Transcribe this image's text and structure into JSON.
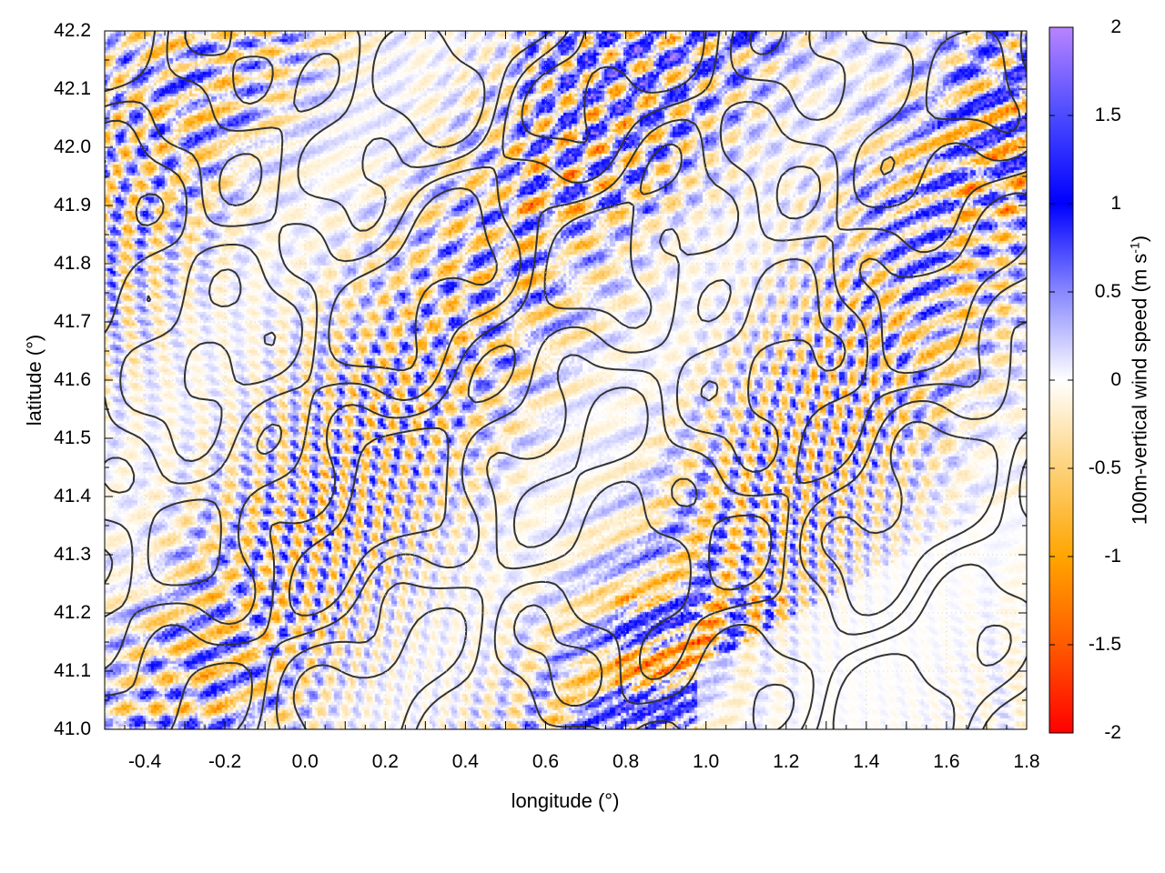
{
  "chart_data": {
    "type": "heatmap",
    "xlabel": "longitude (°)",
    "ylabel": "latitude (°)",
    "colorbar_label": "100m-vertical wind speed (m s",
    "colorbar_label_sup": "-1",
    "colorbar_label_end": ")",
    "xlim": [
      -0.5,
      1.8
    ],
    "ylim": [
      41.0,
      42.2
    ],
    "zlim": [
      -2,
      2
    ],
    "xticks": [
      "-0.4",
      "-0.2",
      "0.0",
      "0.2",
      "0.4",
      "0.6",
      "0.8",
      "1.0",
      "1.2",
      "1.4",
      "1.6",
      "1.8"
    ],
    "xtick_values": [
      -0.4,
      -0.2,
      0.0,
      0.2,
      0.4,
      0.6,
      0.8,
      1.0,
      1.2,
      1.4,
      1.6,
      1.8
    ],
    "yticks": [
      "41.0",
      "41.1",
      "41.2",
      "41.3",
      "41.4",
      "41.5",
      "41.6",
      "41.7",
      "41.8",
      "41.9",
      "42.0",
      "42.1",
      "42.2"
    ],
    "ytick_values": [
      41.0,
      41.1,
      41.2,
      41.3,
      41.4,
      41.5,
      41.6,
      41.7,
      41.8,
      41.9,
      42.0,
      42.1,
      42.2
    ],
    "cbticks": [
      "-2",
      "-1.5",
      "-1",
      "-0.5",
      "0",
      "0.5",
      "1",
      "1.5",
      "2"
    ],
    "cbtick_values": [
      -2,
      -1.5,
      -1,
      -0.5,
      0,
      0.5,
      1,
      1.5,
      2
    ],
    "colormap": [
      {
        "v": -2,
        "color": "#ff0000"
      },
      {
        "v": -1.5,
        "color": "#ff5a00"
      },
      {
        "v": -1,
        "color": "#ffa500"
      },
      {
        "v": -0.5,
        "color": "#fdd27a"
      },
      {
        "v": 0,
        "color": "#ffffff"
      },
      {
        "v": 0.5,
        "color": "#8888ff"
      },
      {
        "v": 1,
        "color": "#0000ff"
      },
      {
        "v": 1.5,
        "color": "#4b4bff"
      },
      {
        "v": 2,
        "color": "#b884ff"
      }
    ],
    "contour_color": "#333333",
    "grid": true
  }
}
